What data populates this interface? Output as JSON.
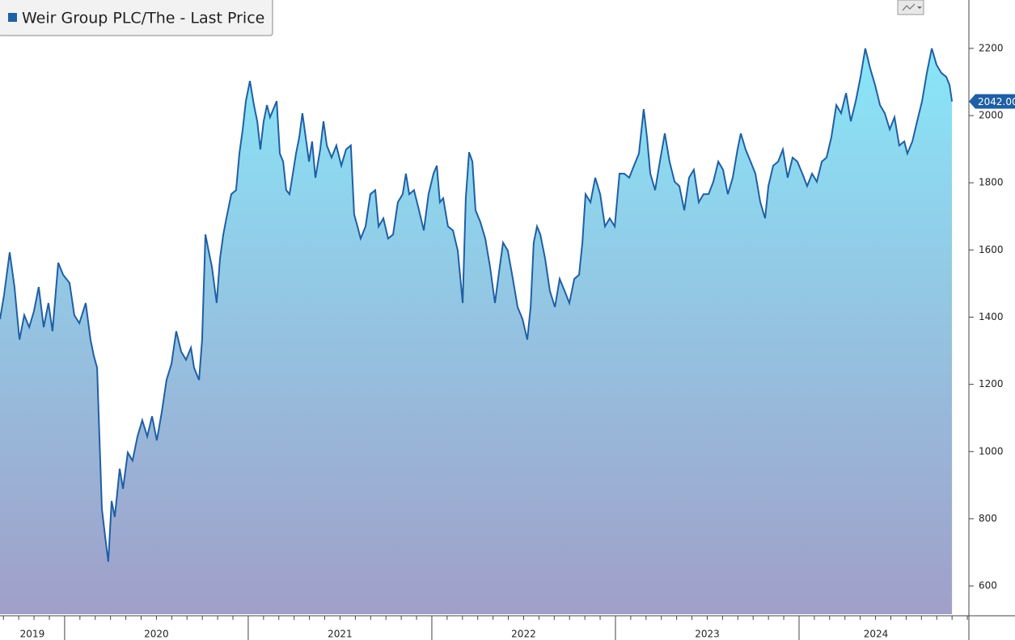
{
  "chart_data": {
    "type": "area",
    "series": [
      {
        "name": "Weir Group PLC/The - Last Price",
        "color": "#1f5fa5",
        "x": [
          2019.648,
          2019.67,
          2019.701,
          2019.727,
          2019.754,
          2019.78,
          2019.807,
          2019.833,
          2019.859,
          2019.886,
          2019.912,
          2019.934,
          2019.965,
          2019.992,
          2020.027,
          2020.053,
          2020.08,
          2020.115,
          2020.141,
          2020.159,
          2020.177,
          2020.185,
          2020.203,
          2020.221,
          2020.238,
          2020.256,
          2020.273,
          2020.3,
          2020.318,
          2020.344,
          2020.37,
          2020.397,
          2020.423,
          2020.45,
          2020.476,
          2020.502,
          2020.529,
          2020.555,
          2020.582,
          2020.608,
          2020.635,
          2020.661,
          2020.688,
          2020.705,
          2020.732,
          2020.749,
          2020.767,
          2020.784,
          2020.802,
          2020.828,
          2020.846,
          2020.864,
          2020.881,
          2020.908,
          2020.934,
          2020.952,
          2020.97,
          2020.987,
          2021.009,
          2021.031,
          2021.049,
          2021.066,
          2021.084,
          2021.102,
          2021.119,
          2021.137,
          2021.155,
          2021.172,
          2021.19,
          2021.207,
          2021.225,
          2021.243,
          2021.26,
          2021.278,
          2021.295,
          2021.313,
          2021.331,
          2021.348,
          2021.366,
          2021.392,
          2021.41,
          2021.428,
          2021.454,
          2021.48,
          2021.507,
          2021.533,
          2021.559,
          2021.577,
          2021.595,
          2021.612,
          2021.639,
          2021.665,
          2021.692,
          2021.71,
          2021.736,
          2021.762,
          2021.789,
          2021.815,
          2021.841,
          2021.859,
          2021.877,
          2021.903,
          2021.93,
          2021.956,
          2021.982,
          2022.009,
          2022.027,
          2022.044,
          2022.062,
          2022.088,
          2022.115,
          2022.141,
          2022.168,
          2022.185,
          2022.203,
          2022.221,
          2022.238,
          2022.265,
          2022.291,
          2022.317,
          2022.344,
          2022.37,
          2022.388,
          2022.414,
          2022.441,
          2022.467,
          2022.494,
          2022.52,
          2022.538,
          2022.555,
          2022.573,
          2022.591,
          2022.617,
          2022.643,
          2022.67,
          2022.696,
          2022.723,
          2022.749,
          2022.776,
          2022.802,
          2022.82,
          2022.837,
          2022.864,
          2022.89,
          2022.917,
          2022.943,
          2022.969,
          2022.996,
          2023.022,
          2023.048,
          2023.075,
          2023.101,
          2023.128,
          2023.154,
          2023.172,
          2023.19,
          2023.216,
          2023.242,
          2023.269,
          2023.295,
          2023.322,
          2023.348,
          2023.375,
          2023.401,
          2023.427,
          2023.454,
          2023.48,
          2023.507,
          2023.533,
          2023.56,
          2023.586,
          2023.612,
          2023.639,
          2023.665,
          2023.683,
          2023.709,
          2023.736,
          2023.762,
          2023.789,
          2023.815,
          2023.833,
          2023.859,
          2023.886,
          2023.912,
          2023.938,
          2023.965,
          2023.991,
          2024.018,
          2024.044,
          2024.071,
          2024.097,
          2024.124,
          2024.15,
          2024.176,
          2024.203,
          2024.229,
          2024.256,
          2024.282,
          2024.309,
          2024.335,
          2024.361,
          2024.388,
          2024.414,
          2024.441,
          2024.467,
          2024.494,
          2024.52,
          2024.546,
          2024.573,
          2024.59,
          2024.617,
          2024.643,
          2024.67,
          2024.696,
          2024.723,
          2024.749,
          2024.775,
          2024.802,
          2024.82,
          2024.833
        ],
        "values": [
          1394,
          1466,
          1593,
          1490,
          1333,
          1406,
          1370,
          1418,
          1490,
          1370,
          1442,
          1358,
          1562,
          1526,
          1502,
          1406,
          1382,
          1442,
          1333,
          1285,
          1249,
          1117,
          829,
          745,
          672,
          853,
          805,
          949,
          889,
          997,
          973,
          1045,
          1093,
          1045,
          1105,
          1033,
          1117,
          1213,
          1261,
          1358,
          1297,
          1273,
          1309,
          1249,
          1213,
          1333,
          1646,
          1598,
          1550,
          1442,
          1574,
          1646,
          1694,
          1766,
          1778,
          1887,
          1959,
          2043,
          2103,
          2031,
          1983,
          1899,
          1983,
          2031,
          1995,
          2019,
          2043,
          1887,
          1863,
          1778,
          1766,
          1827,
          1887,
          1935,
          2007,
          1935,
          1863,
          1923,
          1815,
          1899,
          1983,
          1911,
          1875,
          1911,
          1851,
          1899,
          1911,
          1706,
          1670,
          1634,
          1670,
          1766,
          1778,
          1670,
          1694,
          1634,
          1646,
          1742,
          1766,
          1827,
          1766,
          1778,
          1718,
          1658,
          1766,
          1827,
          1851,
          1742,
          1754,
          1670,
          1658,
          1598,
          1442,
          1754,
          1891,
          1863,
          1718,
          1682,
          1634,
          1550,
          1442,
          1550,
          1622,
          1598,
          1514,
          1430,
          1394,
          1333,
          1430,
          1622,
          1670,
          1646,
          1574,
          1478,
          1430,
          1514,
          1478,
          1442,
          1514,
          1526,
          1622,
          1766,
          1742,
          1815,
          1766,
          1670,
          1694,
          1670,
          1827,
          1827,
          1815,
          1851,
          1887,
          2019,
          1935,
          1827,
          1778,
          1863,
          1947,
          1863,
          1803,
          1790,
          1718,
          1815,
          1839,
          1742,
          1766,
          1766,
          1803,
          1863,
          1839,
          1766,
          1815,
          1899,
          1947,
          1899,
          1863,
          1827,
          1742,
          1694,
          1790,
          1851,
          1863,
          1899,
          1815,
          1875,
          1863,
          1827,
          1790,
          1827,
          1803,
          1863,
          1875,
          1935,
          2031,
          2007,
          2067,
          1983,
          2043,
          2115,
          2200,
          2139,
          2091,
          2031,
          2007,
          1959,
          1995,
          1911,
          1923,
          1887,
          1923,
          1983,
          2043,
          2127,
          2200,
          2151,
          2127,
          2115,
          2091,
          2042
        ],
        "last_value_label": "2042.00"
      }
    ],
    "xlim": [
      2019.648,
      2024.837
    ],
    "year_labels": [
      2019,
      2020,
      2021,
      2022,
      2023,
      2024
    ],
    "ylim": [
      516,
      2344
    ],
    "yticks": [
      600,
      800,
      1000,
      1200,
      1400,
      1600,
      1800,
      2000,
      2200
    ],
    "fill_top": "#89e6f8",
    "fill_bottom": "#a09fc9"
  }
}
